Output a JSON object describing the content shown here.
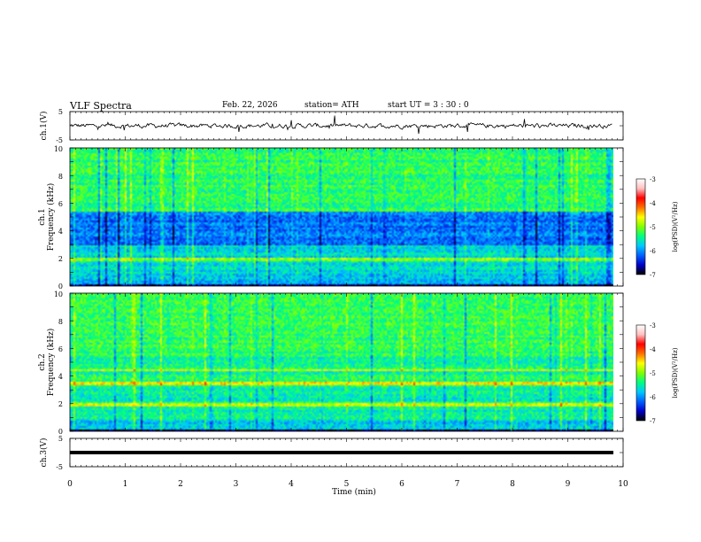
{
  "header": {
    "title": "VLF  Spectra",
    "date": "Feb. 22, 2026",
    "station": "station= ATH",
    "start": "start  UT  =    3  : 30 : 0"
  },
  "chart_data": [
    {
      "type": "line",
      "name": "ch1-voltage",
      "ylabel": "ch.1(V)",
      "ylim": [
        -5,
        5
      ],
      "yticks": [
        "5",
        "-5"
      ],
      "mean_value": 0,
      "x_range_min": [
        0,
        9.8
      ]
    },
    {
      "type": "heatmap",
      "name": "ch1-spectrogram",
      "ylabel": "ch.1\nFrequency (kHz)",
      "ylim": [
        0,
        10
      ],
      "yticks": [
        "0",
        "2",
        "4",
        "6",
        "8",
        "10"
      ],
      "colorbar": {
        "label": "log(PSD)(V²/Hz)",
        "range": [
          -7,
          -3
        ],
        "ticks": [
          "-3",
          "-4",
          "-5",
          "-6",
          "-7"
        ]
      }
    },
    {
      "type": "heatmap",
      "name": "ch2-spectrogram",
      "ylabel": "ch.2\nFrequency (kHz)",
      "ylim": [
        0,
        10
      ],
      "yticks": [
        "0",
        "2",
        "4",
        "6",
        "8",
        "10"
      ],
      "colorbar": {
        "label": "log(PSD)(V²/Hz)",
        "range": [
          -7,
          -3
        ],
        "ticks": [
          "-3",
          "-4",
          "-5",
          "-6",
          "-7"
        ]
      }
    },
    {
      "type": "line",
      "name": "ch3-voltage",
      "ylabel": "ch.3(V)",
      "ylim": [
        -5,
        5
      ],
      "yticks": [
        "5",
        "-5"
      ],
      "constant_value": 0
    }
  ],
  "x_axis": {
    "label": "Time  (min)",
    "xlim": [
      0,
      10
    ],
    "ticks": [
      "0",
      "1",
      "2",
      "3",
      "4",
      "5",
      "6",
      "7",
      "8",
      "9",
      "10"
    ]
  },
  "colors": {
    "cmap": [
      "#000000",
      "#0000c8",
      "#0060ff",
      "#00c8ff",
      "#00ff80",
      "#80ff00",
      "#ffff00",
      "#ff7000",
      "#ff0000",
      "#ffc0c0",
      "#ffffff"
    ]
  }
}
